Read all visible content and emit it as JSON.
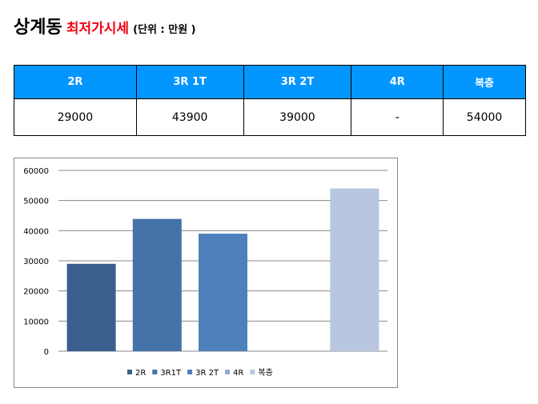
{
  "title": {
    "main": "상계동",
    "red": "최저가시세",
    "unit": "(단위 : 만원 )"
  },
  "table": {
    "headers": [
      "2R",
      "3R 1T",
      "3R 2T",
      "4R",
      "복층"
    ],
    "values": [
      "29000",
      "43900",
      "39000",
      "-",
      "54000"
    ]
  },
  "chart_data": {
    "type": "bar",
    "categories": [
      "2R",
      "3R1T",
      "3R 2T",
      "4R",
      "복층"
    ],
    "values": [
      29000,
      43900,
      39000,
      null,
      54000
    ],
    "colors": [
      "#3b5f8c",
      "#4572a7",
      "#4e80bc",
      "#95aad2",
      "#b9c6e0"
    ],
    "ylim": [
      0,
      60000
    ],
    "yticks": [
      0,
      10000,
      20000,
      30000,
      40000,
      50000,
      60000
    ],
    "legend": "bottom",
    "grid": true,
    "title": "",
    "xlabel": "",
    "ylabel": ""
  }
}
